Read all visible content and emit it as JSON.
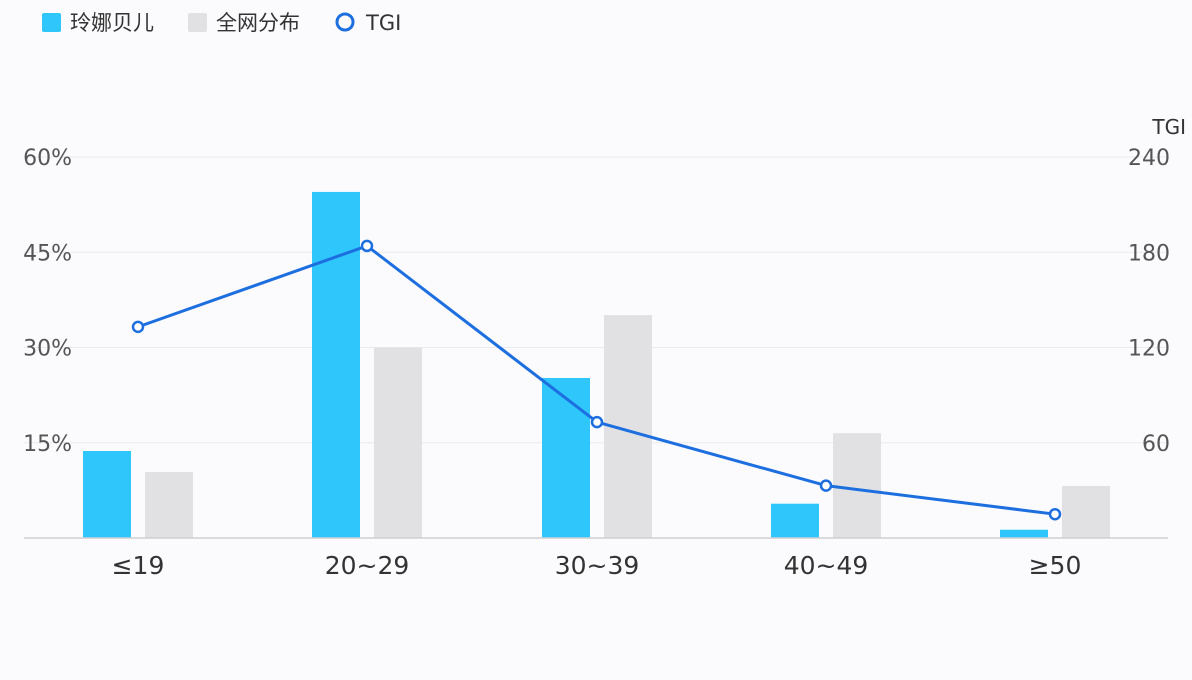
{
  "chart_data": {
    "type": "bar",
    "categories": [
      "≤19",
      "20~29",
      "30~39",
      "40~49",
      "≥50"
    ],
    "series": [
      {
        "name": "玲娜贝儿",
        "type": "bar",
        "axis": "left",
        "color": "#2ec6fb",
        "values": [
          13.7,
          54.5,
          25.2,
          5.4,
          1.3
        ]
      },
      {
        "name": "全网分布",
        "type": "bar",
        "axis": "left",
        "color": "#e1e1e3",
        "values": [
          10.4,
          30.0,
          35.1,
          16.5,
          8.2
        ]
      },
      {
        "name": "TGI",
        "type": "line",
        "axis": "right",
        "color": "#1d6fe0",
        "values": [
          133,
          184,
          73,
          33,
          15
        ]
      }
    ],
    "y_left": {
      "ticks": [
        "15%",
        "30%",
        "45%",
        "60%"
      ],
      "tick_values": [
        15,
        30,
        45,
        60
      ],
      "ylim": [
        0,
        60
      ]
    },
    "y_right": {
      "label": "TGI",
      "ticks": [
        "60",
        "120",
        "180",
        "240"
      ],
      "tick_values": [
        60,
        120,
        180,
        240
      ],
      "ylim": [
        0,
        240
      ]
    },
    "grid": true,
    "legend_position": "top-left"
  }
}
